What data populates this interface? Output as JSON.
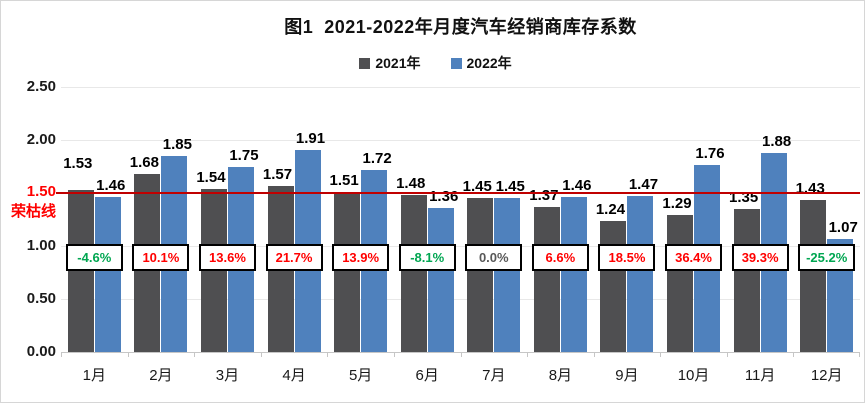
{
  "title": "图1  2021-2022年月度汽车经销商库存系数",
  "legend": [
    {
      "label": "2021年",
      "color": "#4F4F51"
    },
    {
      "label": "2022年",
      "color": "#4F81BD"
    }
  ],
  "y_axis": {
    "ticks": [
      {
        "label": "2.50",
        "value": 2.5
      },
      {
        "label": "2.00",
        "value": 2.0
      },
      {
        "label": "1.00",
        "value": 1.0
      },
      {
        "label": "0.50",
        "value": 0.5
      },
      {
        "label": "0.00",
        "value": 0.0
      }
    ],
    "gridline_values": [
      0.5,
      1.0,
      1.5,
      2.0,
      2.5
    ],
    "min": 0,
    "max": 2.5
  },
  "reference_line": {
    "label": "1.50",
    "name": "荣枯线",
    "value": 1.5
  },
  "chart_data": {
    "type": "bar",
    "title": "图1  2021-2022年月度汽车经销商库存系数",
    "categories": [
      "1月",
      "2月",
      "3月",
      "4月",
      "5月",
      "6月",
      "7月",
      "8月",
      "9月",
      "10月",
      "11月",
      "12月"
    ],
    "series": [
      {
        "name": "2021年",
        "values": [
          1.53,
          1.68,
          1.54,
          1.57,
          1.51,
          1.48,
          1.45,
          1.37,
          1.24,
          1.29,
          1.35,
          1.43
        ]
      },
      {
        "name": "2022年",
        "values": [
          1.46,
          1.85,
          1.75,
          1.91,
          1.72,
          1.36,
          1.45,
          1.46,
          1.47,
          1.76,
          1.88,
          1.07
        ]
      }
    ],
    "yoy_change": [
      "-4.6%",
      "10.1%",
      "13.6%",
      "21.7%",
      "13.9%",
      "-8.1%",
      "0.0%",
      "6.6%",
      "18.5%",
      "36.4%",
      "39.3%",
      "-25.2%"
    ],
    "ylim": [
      0,
      2.5
    ],
    "grid": true,
    "legend_position": "top",
    "reference_line_value": 1.5
  },
  "colors": {
    "bar_2021": "#4F4F51",
    "bar_2022": "#4F81BD",
    "reference_line": "#C00000",
    "reference_text": "#FF0000",
    "pct_up": "#FF0000",
    "pct_down": "#00A651",
    "pct_zero": "#595959",
    "grid": "#E8E8E8",
    "axis": "#C6C6C6"
  }
}
